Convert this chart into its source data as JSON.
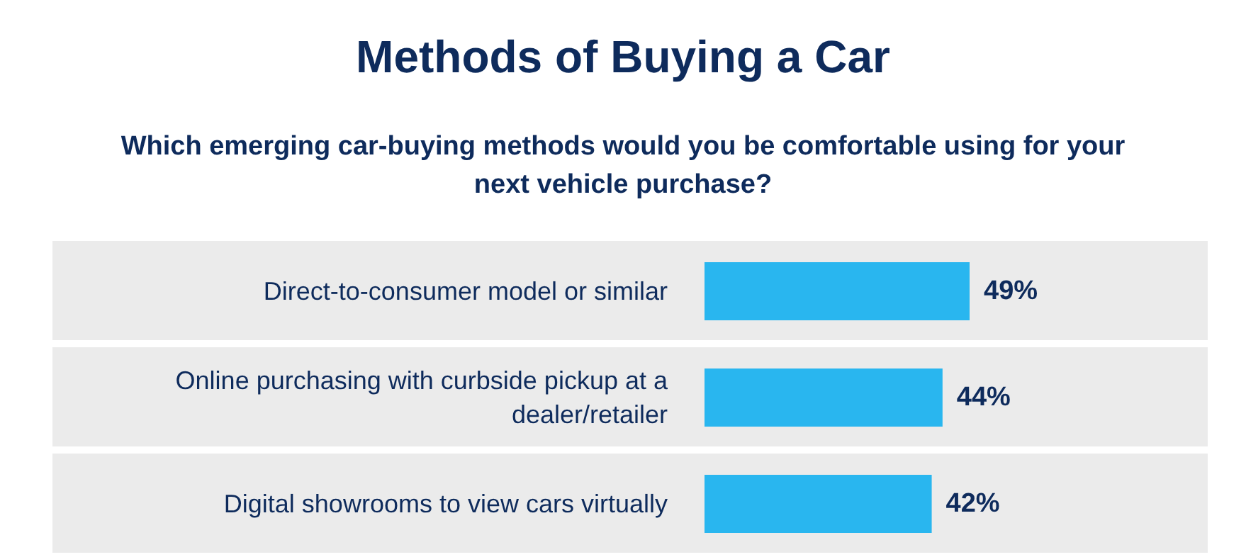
{
  "chart_data": {
    "type": "bar",
    "orientation": "horizontal",
    "title": "Methods of Buying a Car",
    "subtitle": "Which emerging car-buying methods would you be comfortable using for your next vehicle purchase?",
    "categories": [
      "Direct-to-consumer model or similar",
      "Online purchasing with curbside pickup at a dealer/retailer",
      "Digital showrooms to view cars virtually"
    ],
    "values": [
      49,
      44,
      42
    ],
    "value_labels": [
      "49%",
      "44%",
      "42%"
    ],
    "color": "#29b6ef",
    "tick_labels": "y",
    "bands": [
      {
        "axis": "y",
        "from": "Direct-to-consumer model or similar",
        "to": "Direct-to-consumer model or similar",
        "color": "#ebebeb"
      },
      {
        "axis": "y",
        "from": "Online purchasing with curbside pickup at a dealer/retailer",
        "to": "Online purchasing with curbside pickup at a dealer/retailer",
        "color": "#ebebeb"
      },
      {
        "axis": "y",
        "from": "Digital showrooms to view cars virtually",
        "to": "Digital showrooms to view cars virtually",
        "color": "#ebebeb"
      }
    ]
  }
}
